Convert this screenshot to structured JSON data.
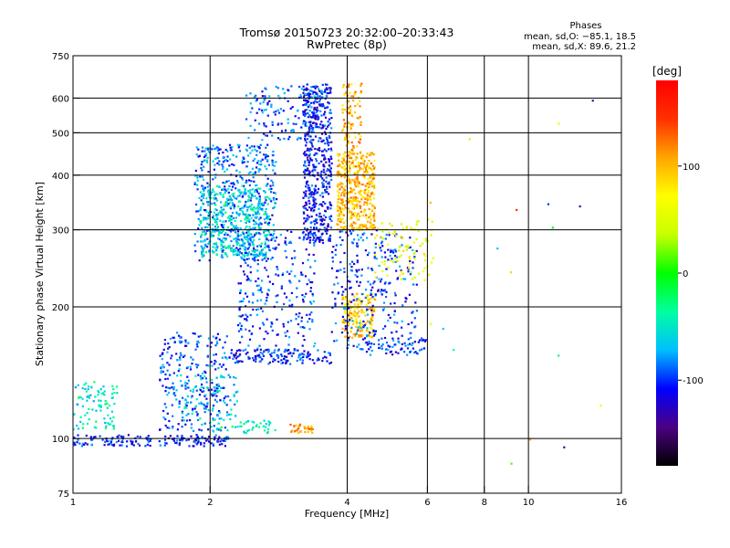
{
  "chart_data": {
    "type": "scatter",
    "title": "Tromsø 20150723 20:32:00–20:33:43",
    "subtitle": "RwPretec (8p)",
    "phase_header": "Phases",
    "phase_stats": [
      "mean, sd,O: −85.1, 18.5",
      "mean, sd,X:  89.6, 21.2"
    ],
    "xlabel": "Frequency [MHz]",
    "ylabel": "Stationary phase Virtual Height [km]",
    "x_scale": "log",
    "y_scale": "log",
    "xlim": [
      1,
      16
    ],
    "ylim": [
      75,
      750
    ],
    "x_ticks": [
      {
        "value": 1,
        "label": "1"
      },
      {
        "value": 2,
        "label": "2"
      },
      {
        "value": 4,
        "label": "4"
      },
      {
        "value": 6,
        "label": "6"
      },
      {
        "value": 8,
        "label": "8"
      },
      {
        "value": 10,
        "label": "10"
      },
      {
        "value": 16,
        "label": "16"
      }
    ],
    "x_grid": [
      2,
      4,
      6,
      8,
      10
    ],
    "y_ticks": [
      {
        "value": 75,
        "label": "75"
      },
      {
        "value": 100,
        "label": "100"
      },
      {
        "value": 200,
        "label": "200"
      },
      {
        "value": 300,
        "label": "300"
      },
      {
        "value": 400,
        "label": "400"
      },
      {
        "value": 500,
        "label": "500"
      },
      {
        "value": 600,
        "label": "600"
      },
      {
        "value": 750,
        "label": "750"
      }
    ],
    "y_grid": [
      100,
      200,
      300,
      400,
      500,
      600
    ],
    "grid": true,
    "colorbar": {
      "label": "[deg]",
      "range": [
        -180,
        180
      ],
      "ticks": [
        {
          "value": 100,
          "label": "100"
        },
        {
          "value": 0,
          "label": "0"
        },
        {
          "value": -100,
          "label": "-100"
        }
      ],
      "colors": [
        "#000000",
        "#4b0082",
        "#0000ff",
        "#00bfff",
        "#00ffa0",
        "#00ff00",
        "#c8ff00",
        "#ffff00",
        "#ffa500",
        "#ff3000",
        "#ff0000"
      ]
    },
    "regions": [
      {
        "x": [
          1.0,
          2.2
        ],
        "y": [
          96,
          102
        ],
        "phase": -105,
        "n": 170
      },
      {
        "x": [
          1.0,
          1.25
        ],
        "y": [
          105,
          135
        ],
        "phase": -50,
        "n": 90
      },
      {
        "x": [
          1.55,
          2.2
        ],
        "y": [
          104,
          175
        ],
        "phase": -95,
        "n": 260
      },
      {
        "x": [
          1.7,
          2.3
        ],
        "y": [
          110,
          140
        ],
        "phase": -60,
        "n": 80
      },
      {
        "x": [
          2.0,
          2.8
        ],
        "y": [
          103,
          110
        ],
        "phase": -45,
        "n": 45
      },
      {
        "x": [
          1.85,
          2.8
        ],
        "y": [
          255,
          470
        ],
        "phase": -88,
        "n": 520
      },
      {
        "x": [
          1.9,
          2.7
        ],
        "y": [
          260,
          380
        ],
        "phase": -55,
        "n": 380
      },
      {
        "x": [
          2.3,
          3.4
        ],
        "y": [
          150,
          300
        ],
        "phase": -100,
        "n": 280
      },
      {
        "x": [
          2.2,
          3.7
        ],
        "y": [
          148,
          160
        ],
        "phase": -105,
        "n": 120
      },
      {
        "x": [
          3.2,
          3.7
        ],
        "y": [
          280,
          650
        ],
        "phase": -108,
        "n": 520
      },
      {
        "x": [
          2.4,
          3.6
        ],
        "y": [
          480,
          640
        ],
        "phase": -95,
        "n": 140
      },
      {
        "x": [
          3.8,
          4.6
        ],
        "y": [
          300,
          450
        ],
        "phase": 100,
        "n": 460
      },
      {
        "x": [
          3.9,
          4.6
        ],
        "y": [
          170,
          215
        ],
        "phase": 90,
        "n": 170
      },
      {
        "x": [
          3.7,
          5.7
        ],
        "y": [
          160,
          300
        ],
        "phase": -100,
        "n": 300
      },
      {
        "x": [
          3.9,
          4.3
        ],
        "y": [
          450,
          650
        ],
        "phase": 105,
        "n": 100
      },
      {
        "x": [
          4.6,
          6.2
        ],
        "y": [
          230,
          320
        ],
        "phase": 60,
        "n": 90
      },
      {
        "x": [
          4.4,
          6.0
        ],
        "y": [
          155,
          170
        ],
        "phase": -95,
        "n": 60
      },
      {
        "x": [
          3.0,
          3.4
        ],
        "y": [
          103,
          108
        ],
        "phase": 110,
        "n": 35
      },
      {
        "x": [
          5.8,
          15.0
        ],
        "y": [
          85,
          640
        ],
        "phase": 0,
        "n": 18,
        "sparse": true
      }
    ]
  }
}
